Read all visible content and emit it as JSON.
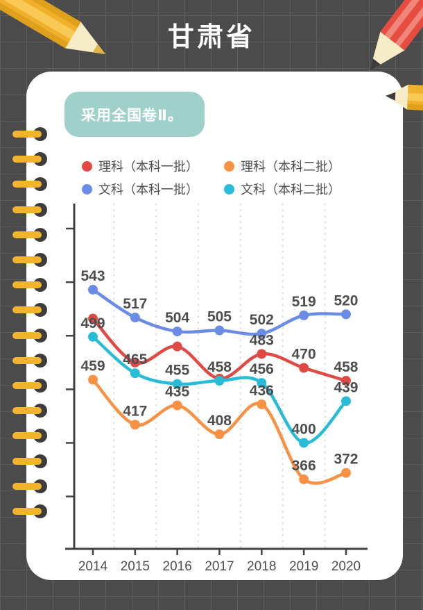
{
  "header": {
    "title": "甘肃省"
  },
  "note_badge": {
    "text": "采用全国卷Ⅱ。",
    "bg_color": "#9fd0ca"
  },
  "chart_data": {
    "type": "line",
    "categories": [
      "2014",
      "2015",
      "2016",
      "2017",
      "2018",
      "2019",
      "2020"
    ],
    "ylim": [
      300,
      625
    ],
    "yticks": [
      350,
      400,
      450,
      500,
      550,
      600
    ],
    "ytick_labels_visible": false,
    "grid": "vertical dashed lines between categories",
    "legend_position": "top",
    "series": [
      {
        "name": "理科（本科一批）",
        "color": "#e04a45",
        "values": [
          516,
          475,
          490,
          460,
          483,
          470,
          458
        ],
        "point_labels": [
          "",
          "",
          "",
          "",
          "483",
          "470",
          "458"
        ]
      },
      {
        "name": "理科（本科二批）",
        "color": "#f89143",
        "values": [
          459,
          417,
          435,
          408,
          436,
          366,
          372
        ],
        "point_labels": [
          "459",
          "417",
          "435",
          "408",
          "436",
          "366",
          "372"
        ]
      },
      {
        "name": "文科（本科一批）",
        "color": "#6b8ce4",
        "values": [
          543,
          517,
          504,
          505,
          502,
          519,
          520
        ],
        "point_labels": [
          "543",
          "517",
          "504",
          "505",
          "502",
          "519",
          "520"
        ]
      },
      {
        "name": "文科（本科二批）",
        "color": "#28bcd6",
        "values": [
          499,
          465,
          455,
          458,
          456,
          400,
          439
        ],
        "point_labels": [
          "499",
          "465",
          "455",
          "458",
          "456",
          "400",
          "439"
        ]
      }
    ]
  }
}
